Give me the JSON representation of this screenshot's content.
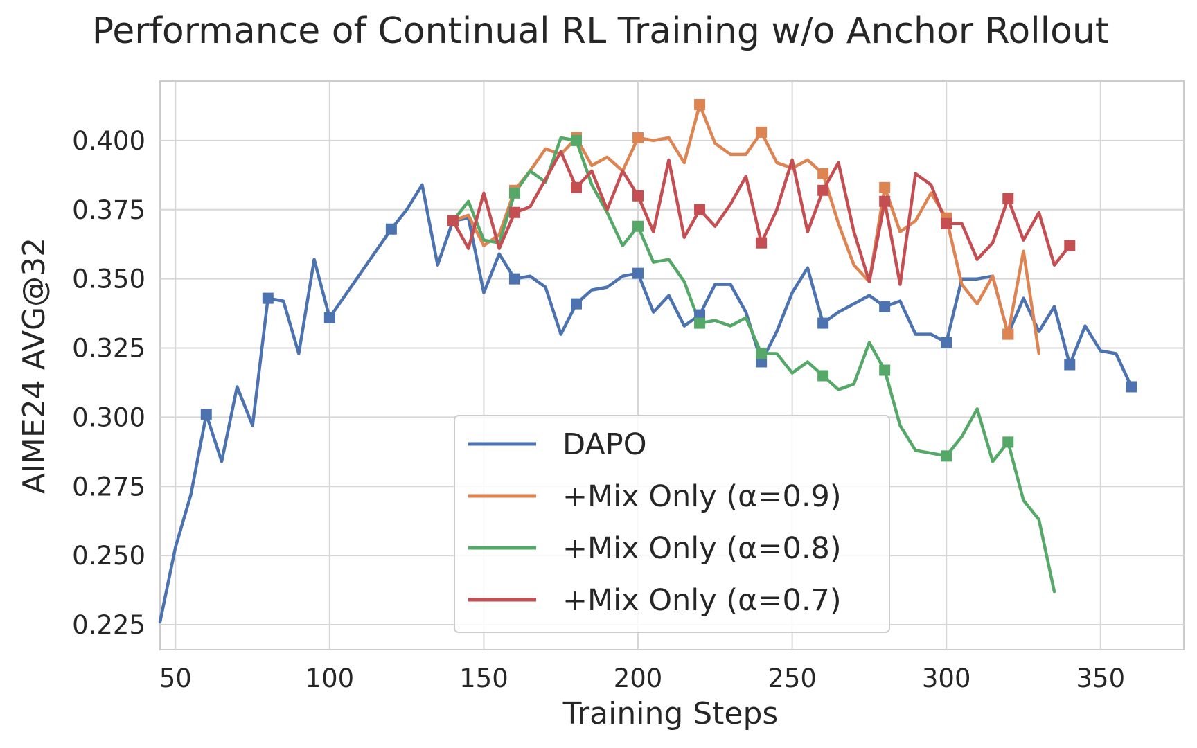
{
  "chart_data": {
    "type": "line",
    "title": "Performance of Continual RL Training w/o Anchor Rollout",
    "xlabel": "Training Steps",
    "ylabel": "AIME24 AVG@32",
    "xlim": [
      45,
      377
    ],
    "ylim": [
      0.216,
      0.4215
    ],
    "xticks": [
      50,
      100,
      150,
      200,
      250,
      300,
      350
    ],
    "yticks": [
      0.225,
      0.25,
      0.275,
      0.3,
      0.325,
      0.35,
      0.375,
      0.4
    ],
    "xtick_labels": [
      "50",
      "100",
      "150",
      "200",
      "250",
      "300",
      "350"
    ],
    "ytick_labels": [
      "0.225",
      "0.250",
      "0.275",
      "0.300",
      "0.325",
      "0.350",
      "0.375",
      "0.400"
    ],
    "grid": true,
    "legend_position": "bottom-center",
    "marker": "square",
    "series": [
      {
        "name": "DAPO",
        "color": "#4c72b0",
        "x": [
          45,
          50,
          55,
          60,
          65,
          70,
          75,
          80,
          85,
          90,
          95,
          100,
          105,
          110,
          115,
          120,
          125,
          130,
          135,
          140,
          145,
          150,
          155,
          160,
          165,
          170,
          175,
          180,
          185,
          190,
          195,
          200,
          205,
          210,
          215,
          220,
          225,
          230,
          235,
          240,
          245,
          250,
          255,
          260,
          265,
          270,
          275,
          280,
          285,
          290,
          295,
          300,
          305,
          310,
          315,
          320,
          325,
          330,
          335,
          340,
          345,
          350,
          355,
          360
        ],
        "y": [
          0.226,
          0.253,
          0.272,
          0.301,
          0.284,
          0.311,
          0.297,
          0.343,
          0.342,
          0.323,
          0.357,
          0.336,
          0.344,
          0.352,
          0.36,
          0.368,
          0.375,
          0.384,
          0.355,
          0.371,
          0.372,
          0.345,
          0.359,
          0.35,
          0.351,
          0.347,
          0.33,
          0.341,
          0.346,
          0.347,
          0.351,
          0.352,
          0.338,
          0.344,
          0.333,
          0.337,
          0.348,
          0.348,
          0.338,
          0.32,
          0.331,
          0.345,
          0.354,
          0.334,
          0.338,
          0.341,
          0.344,
          0.34,
          0.342,
          0.33,
          0.33,
          0.327,
          0.35,
          0.35,
          0.351,
          0.33,
          0.343,
          0.331,
          0.34,
          0.319,
          0.333,
          0.324,
          0.323,
          0.311
        ],
        "marker_x": [
          60,
          80,
          100,
          120,
          140,
          160,
          180,
          200,
          220,
          240,
          260,
          280,
          300,
          320,
          340,
          360
        ]
      },
      {
        "name": "+Mix Only (α=0.9)",
        "color": "#dd8452",
        "x": [
          140,
          145,
          150,
          155,
          160,
          165,
          170,
          175,
          180,
          185,
          190,
          195,
          200,
          205,
          210,
          215,
          220,
          225,
          230,
          235,
          240,
          245,
          250,
          255,
          260,
          265,
          270,
          275,
          280,
          285,
          290,
          295,
          300,
          305,
          310,
          315,
          320,
          325,
          330
        ],
        "y": [
          0.371,
          0.373,
          0.362,
          0.366,
          0.382,
          0.389,
          0.397,
          0.395,
          0.401,
          0.391,
          0.394,
          0.389,
          0.401,
          0.4,
          0.401,
          0.392,
          0.413,
          0.399,
          0.395,
          0.395,
          0.403,
          0.392,
          0.39,
          0.393,
          0.388,
          0.37,
          0.355,
          0.349,
          0.383,
          0.367,
          0.371,
          0.381,
          0.372,
          0.348,
          0.341,
          0.351,
          0.33,
          0.36,
          0.323
        ],
        "marker_x": [
          140,
          160,
          180,
          200,
          220,
          240,
          260,
          280,
          300,
          320
        ]
      },
      {
        "name": "+Mix Only (α=0.8)",
        "color": "#55a868",
        "x": [
          140,
          145,
          150,
          155,
          160,
          165,
          170,
          175,
          180,
          185,
          190,
          195,
          200,
          205,
          210,
          215,
          220,
          225,
          230,
          235,
          240,
          245,
          250,
          255,
          260,
          265,
          270,
          275,
          280,
          285,
          290,
          295,
          300,
          305,
          310,
          315,
          320,
          325,
          330,
          335
        ],
        "y": [
          0.371,
          0.378,
          0.364,
          0.363,
          0.381,
          0.389,
          0.385,
          0.401,
          0.4,
          0.384,
          0.374,
          0.362,
          0.369,
          0.356,
          0.357,
          0.349,
          0.334,
          0.335,
          0.333,
          0.336,
          0.323,
          0.323,
          0.316,
          0.32,
          0.315,
          0.31,
          0.312,
          0.327,
          0.317,
          0.297,
          0.288,
          0.287,
          0.286,
          0.293,
          0.303,
          0.284,
          0.291,
          0.27,
          0.263,
          0.237
        ],
        "marker_x": [
          140,
          160,
          180,
          200,
          220,
          240,
          260,
          280,
          300,
          320
        ]
      },
      {
        "name": "+Mix Only (α=0.7)",
        "color": "#c44e52",
        "x": [
          140,
          145,
          150,
          155,
          160,
          165,
          170,
          175,
          180,
          185,
          190,
          195,
          200,
          205,
          210,
          215,
          220,
          225,
          230,
          235,
          240,
          245,
          250,
          255,
          260,
          265,
          270,
          275,
          280,
          285,
          290,
          295,
          300,
          305,
          310,
          315,
          320,
          325,
          330,
          335,
          340
        ],
        "y": [
          0.371,
          0.361,
          0.381,
          0.361,
          0.374,
          0.376,
          0.386,
          0.396,
          0.383,
          0.389,
          0.375,
          0.389,
          0.38,
          0.367,
          0.393,
          0.365,
          0.375,
          0.369,
          0.377,
          0.387,
          0.363,
          0.375,
          0.393,
          0.367,
          0.382,
          0.392,
          0.367,
          0.349,
          0.378,
          0.348,
          0.388,
          0.384,
          0.37,
          0.37,
          0.357,
          0.363,
          0.379,
          0.364,
          0.374,
          0.355,
          0.362
        ],
        "marker_x": [
          140,
          160,
          180,
          200,
          220,
          240,
          260,
          280,
          300,
          320,
          340
        ]
      }
    ]
  }
}
